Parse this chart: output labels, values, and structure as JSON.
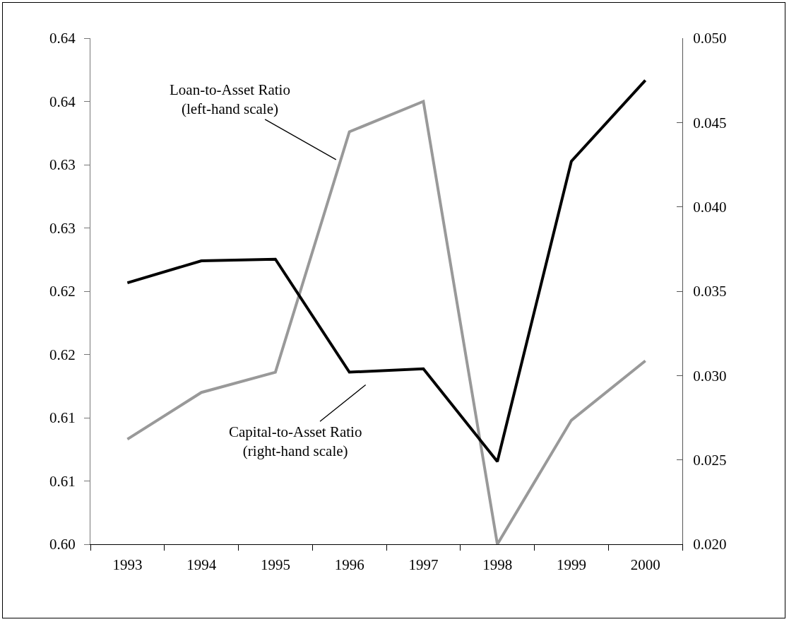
{
  "chart_data": {
    "type": "line",
    "categories": [
      "1993",
      "1994",
      "1995",
      "1996",
      "1997",
      "1998",
      "1999",
      "2000"
    ],
    "series": [
      {
        "color": "#999999",
        "values": [
          0.6083,
          0.612,
          0.6136,
          0.6326,
          0.635,
          0.6,
          0.6098,
          0.6145
        ]
      },
      {
        "color": "#000000",
        "axis": "y2",
        "values": [
          0.0355,
          0.0368,
          0.0369,
          0.0302,
          0.0304,
          0.0249,
          0.0427,
          0.0475
        ]
      }
    ],
    "annotations": [
      "Loan-to-Asset Ratio\n(left-hand scale)",
      "Capital-to-Asset Ratio\n(right-hand scale)"
    ],
    "ylim": [
      0.6,
      0.64
    ],
    "yticks": [
      {
        "value": 0.6,
        "label": "0.60"
      },
      {
        "value": 0.605,
        "label": "0.61"
      },
      {
        "value": 0.61,
        "label": "0.61"
      },
      {
        "value": 0.615,
        "label": "0.62"
      },
      {
        "value": 0.62,
        "label": "0.62"
      },
      {
        "value": 0.625,
        "label": "0.63"
      },
      {
        "value": 0.63,
        "label": "0.63"
      },
      {
        "value": 0.635,
        "label": "0.64"
      },
      {
        "value": 0.64,
        "label": "0.64"
      }
    ],
    "y2lim": [
      0.02,
      0.05
    ],
    "y2ticks": [
      {
        "value": 0.02,
        "label": "0.020"
      },
      {
        "value": 0.025,
        "label": "0.025"
      },
      {
        "value": 0.03,
        "label": "0.030"
      },
      {
        "value": 0.035,
        "label": "0.035"
      },
      {
        "value": 0.04,
        "label": "0.040"
      },
      {
        "value": 0.045,
        "label": "0.045"
      },
      {
        "value": 0.05,
        "label": "0.050"
      }
    ],
    "grid": false,
    "marker": "none",
    "line_style": "solid"
  }
}
